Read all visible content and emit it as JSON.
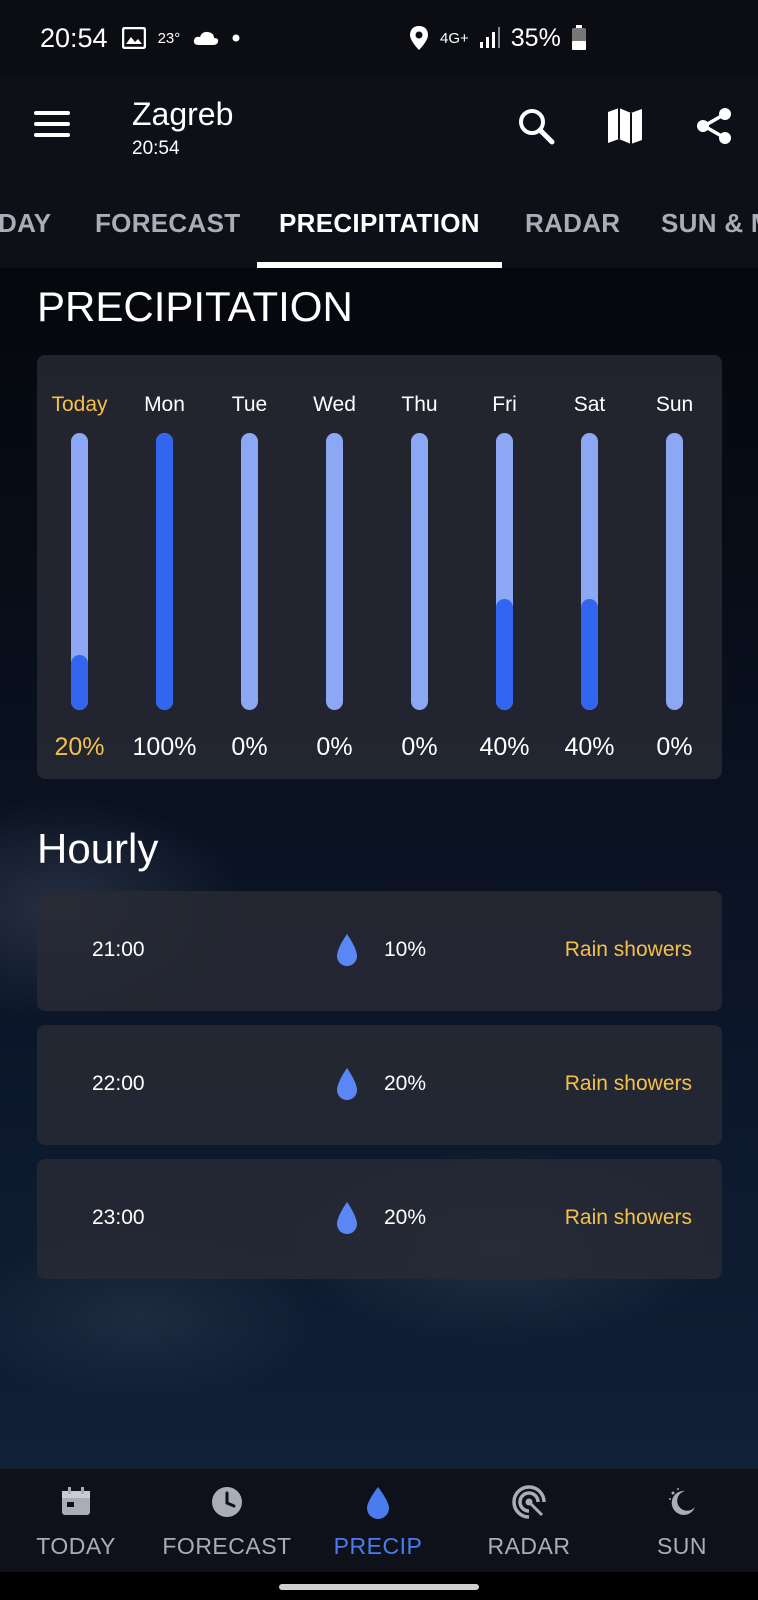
{
  "status_bar": {
    "time": "20:54",
    "temp": "23°",
    "network": "4G+",
    "battery": "35%"
  },
  "header": {
    "city": "Zagreb",
    "time": "20:54"
  },
  "tabs": [
    {
      "label": "DAY"
    },
    {
      "label": "FORECAST"
    },
    {
      "label": "PRECIPITATION"
    },
    {
      "label": "RADAR"
    },
    {
      "label": "SUN & M"
    }
  ],
  "active_tab": "PRECIPITATION",
  "section_title": "PRECIPITATION",
  "chart_data": {
    "type": "bar",
    "categories": [
      "Today",
      "Mon",
      "Tue",
      "Wed",
      "Thu",
      "Fri",
      "Sat",
      "Sun"
    ],
    "values": [
      20,
      100,
      0,
      0,
      0,
      40,
      40,
      0
    ],
    "labels": [
      "20%",
      "100%",
      "0%",
      "0%",
      "0%",
      "40%",
      "40%",
      "0%"
    ],
    "ylim": [
      0,
      100
    ],
    "highlight_color": "#f5c04a",
    "fill_color": "#3366f0",
    "track_color": "#8ca8f5"
  },
  "hourly_title": "Hourly",
  "hourly": [
    {
      "time": "21:00",
      "pct": "10%",
      "condition": "Rain showers"
    },
    {
      "time": "22:00",
      "pct": "20%",
      "condition": "Rain showers"
    },
    {
      "time": "23:00",
      "pct": "20%",
      "condition": "Rain showers"
    }
  ],
  "bottom_nav": [
    {
      "label": "TODAY",
      "icon": "calendar-icon"
    },
    {
      "label": "FORECAST",
      "icon": "clock-icon"
    },
    {
      "label": "PRECIP",
      "icon": "drop-icon"
    },
    {
      "label": "RADAR",
      "icon": "radar-icon"
    },
    {
      "label": "SUN",
      "icon": "moon-icon"
    }
  ],
  "colors": {
    "accent": "#4a7cf0",
    "condition": "#f5c04a"
  }
}
